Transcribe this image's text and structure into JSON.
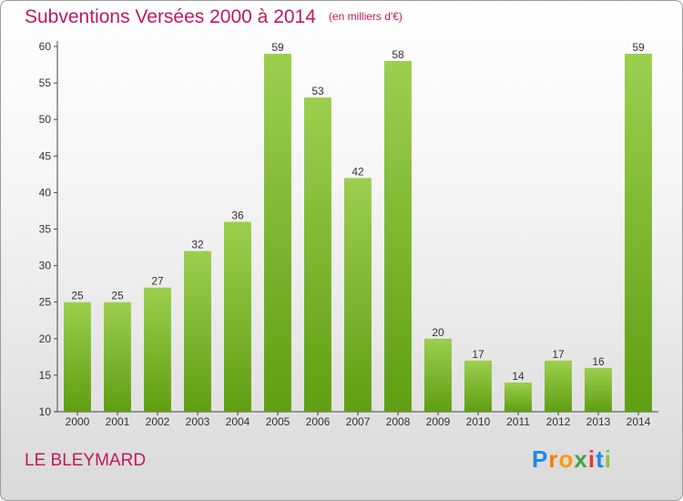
{
  "header": {
    "title": "Subventions Versées 2000 à 2014",
    "unit": "(en milliers d'€)"
  },
  "footer": {
    "place": "LE BLEYMARD",
    "logo": "Proxiti"
  },
  "colors": {
    "title": "#c2185b",
    "bar_light": "#9ccf4e",
    "bar_dark": "#5f9e12"
  },
  "chart_data": {
    "type": "bar",
    "title": "Subventions Versées 2000 à 2014",
    "subtitle": "(en milliers d'€)",
    "xlabel": "",
    "ylabel": "",
    "ylim": [
      10,
      60
    ],
    "yticks": [
      10,
      15,
      20,
      25,
      30,
      35,
      40,
      45,
      50,
      55,
      60
    ],
    "categories": [
      "2000",
      "2001",
      "2002",
      "2003",
      "2004",
      "2005",
      "2006",
      "2007",
      "2008",
      "2009",
      "2010",
      "2011",
      "2012",
      "2013",
      "2014"
    ],
    "values": [
      25,
      25,
      27,
      32,
      36,
      59,
      53,
      42,
      58,
      20,
      17,
      14,
      17,
      16,
      59
    ],
    "grid": false,
    "legend": "none"
  }
}
